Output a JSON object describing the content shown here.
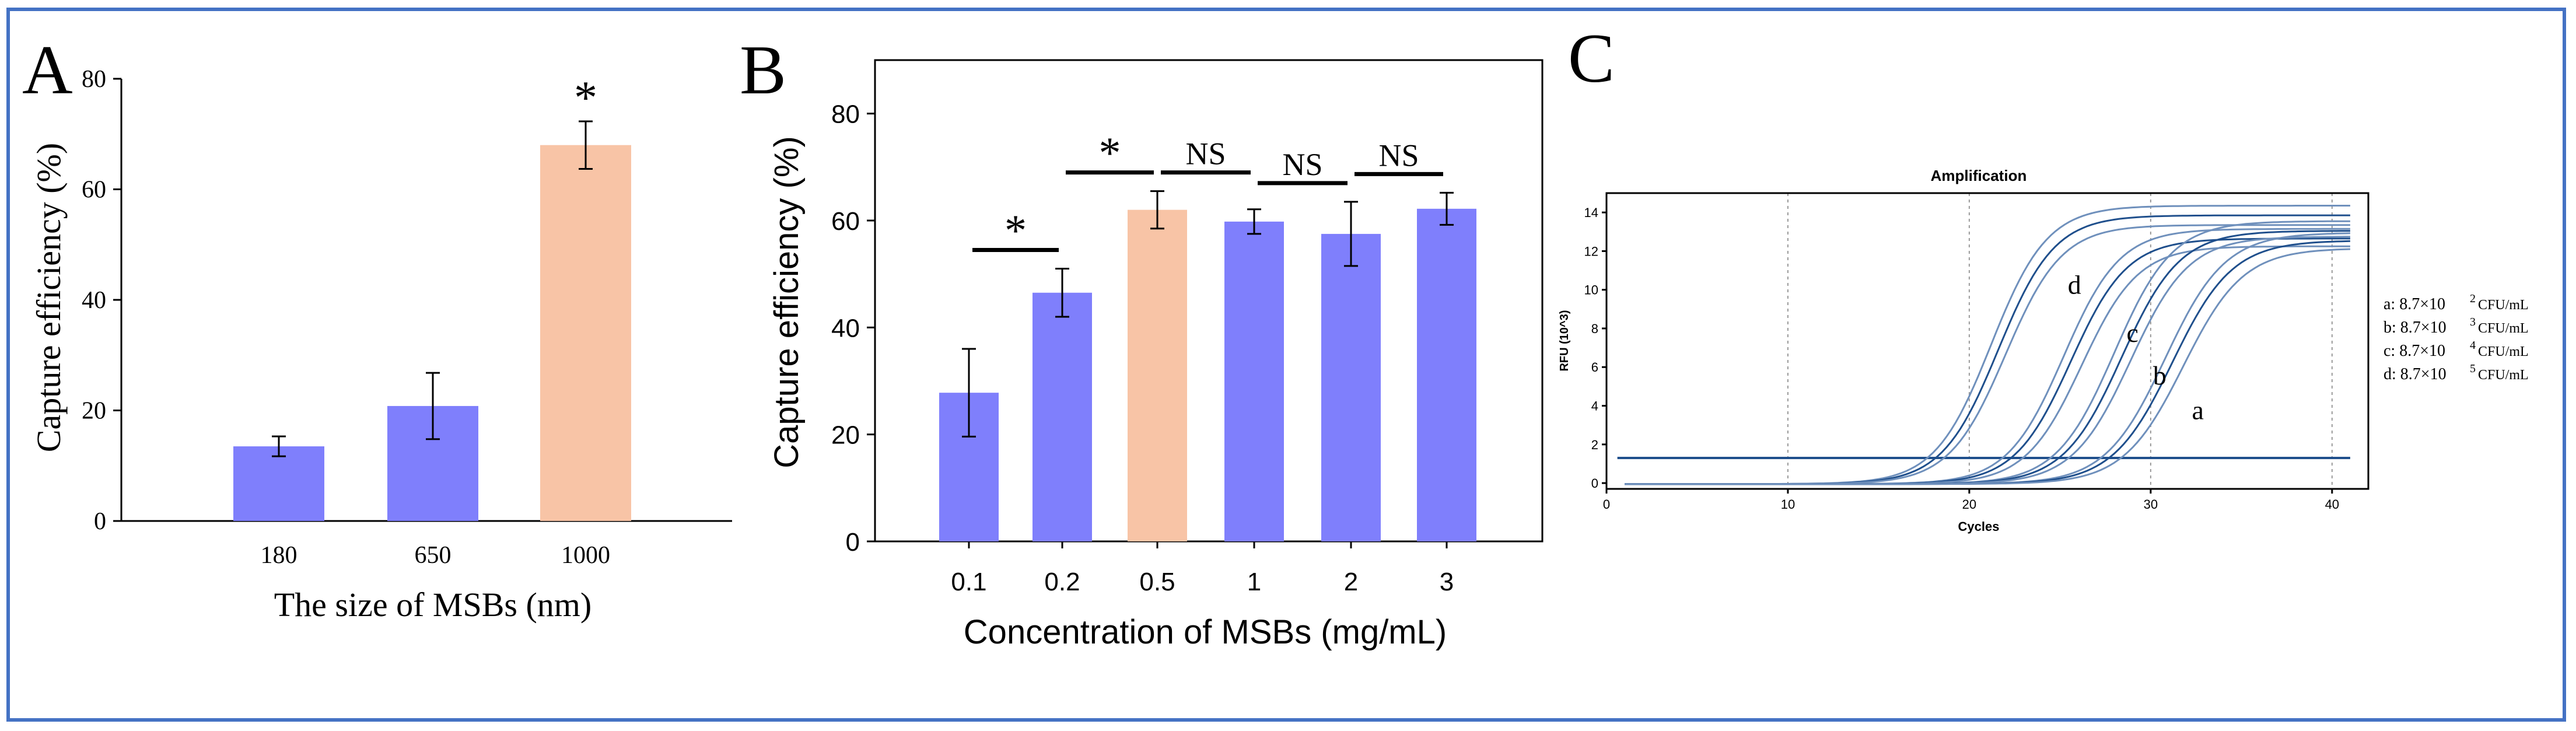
{
  "colors": {
    "frame": "#4472c4",
    "bar_blue": "#7f7ffc",
    "bar_orange": "#f8c4a6",
    "curve_dark": "#1f4f8c",
    "curve_light": "#6f90bc",
    "threshold": "#1f4f8c"
  },
  "chart_data": [
    {
      "panel": "A",
      "type": "bar",
      "categories": [
        "180",
        "650",
        "1000"
      ],
      "values": [
        13.5,
        20.8,
        68.0
      ],
      "errors": [
        1.8,
        6.0,
        4.3
      ],
      "highlight": [
        false,
        false,
        true
      ],
      "significance_labels": [
        "",
        "",
        "*"
      ],
      "ylim": [
        0,
        80
      ],
      "yticks": [
        "0",
        "20",
        "40",
        "60",
        "80"
      ],
      "xlabel": "The size of MSBs (nm)",
      "ylabel": "Capture efficiency (%)"
    },
    {
      "panel": "B",
      "type": "bar",
      "categories": [
        "0.1",
        "0.2",
        "0.5",
        "1",
        "2",
        "3"
      ],
      "values": [
        27.8,
        46.5,
        62.0,
        59.8,
        57.5,
        62.2
      ],
      "errors": [
        8.2,
        4.5,
        3.5,
        2.3,
        6.0,
        3.0
      ],
      "highlight": [
        false,
        false,
        true,
        false,
        false,
        false
      ],
      "comparisons": [
        {
          "from": 0,
          "to": 1,
          "label": "*"
        },
        {
          "from": 1,
          "to": 2,
          "label": "*"
        },
        {
          "from": 2,
          "to": 3,
          "label": "NS"
        },
        {
          "from": 3,
          "to": 4,
          "label": "NS"
        },
        {
          "from": 4,
          "to": 5,
          "label": "NS"
        }
      ],
      "ylim": [
        0,
        90
      ],
      "yticks": [
        "0",
        "20",
        "40",
        "60",
        "80"
      ],
      "xlabel": "Concentration of MSBs (mg/mL)",
      "ylabel": "Capture efficiency (%)"
    },
    {
      "panel": "C",
      "type": "line",
      "title": "Amplification",
      "xlabel": "Cycles",
      "ylabel": "RFU (10^3)",
      "xlim": [
        0,
        42
      ],
      "ylim": [
        -0.3,
        15
      ],
      "xticks": [
        "0",
        "10",
        "20",
        "30",
        "40"
      ],
      "yticks": [
        "0",
        "2",
        "4",
        "6",
        "8",
        "10",
        "12",
        "14"
      ],
      "threshold": 1.3,
      "series": [
        {
          "name": "d",
          "midpoints": [
            21.2,
            21.6,
            22.0
          ],
          "plateaus": [
            14.4,
            13.9,
            13.4
          ],
          "slope": 1.55
        },
        {
          "name": "c",
          "midpoints": [
            25.2,
            25.6,
            26.2
          ],
          "plateaus": [
            13.2,
            12.7,
            12.3
          ],
          "slope": 1.55
        },
        {
          "name": "b",
          "midpoints": [
            28.0,
            28.4,
            28.9
          ],
          "plateaus": [
            13.6,
            13.1,
            12.8
          ],
          "slope": 1.6
        },
        {
          "name": "a",
          "midpoints": [
            30.8,
            31.2,
            31.8
          ],
          "plateaus": [
            13.0,
            12.6,
            12.2
          ],
          "slope": 1.65
        }
      ],
      "curve_labels": [
        {
          "text": "d",
          "x": 25.8,
          "y": 9.8
        },
        {
          "text": "c",
          "x": 29.0,
          "y": 7.3
        },
        {
          "text": "b",
          "x": 30.5,
          "y": 5.1
        },
        {
          "text": "a",
          "x": 32.6,
          "y": 3.3
        }
      ],
      "legend": [
        {
          "key": "a: 8.7×10",
          "exp": "2",
          "unit": "CFU/mL"
        },
        {
          "key": "b: 8.7×10",
          "exp": "3",
          "unit": "CFU/mL"
        },
        {
          "key": "c: 8.7×10",
          "exp": "4",
          "unit": "CFU/mL"
        },
        {
          "key": "d: 8.7×10",
          "exp": "5",
          "unit": "CFU/mL"
        }
      ]
    }
  ]
}
